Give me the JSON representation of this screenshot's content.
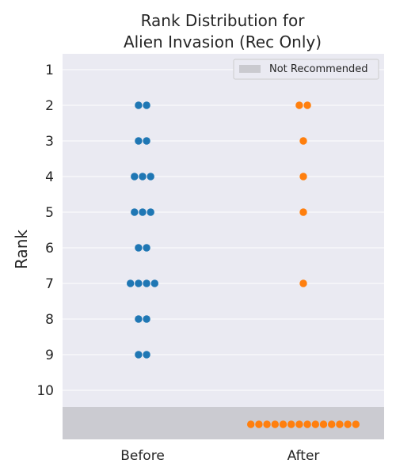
{
  "chart_data": {
    "type": "scatter",
    "subtype": "swarm",
    "title_lines": [
      "Rank Distribution for",
      "Alien Invasion (Rec Only)"
    ],
    "xlabel": "",
    "ylabel": "Rank",
    "categories": [
      "Before",
      "After"
    ],
    "y_ticks": [
      "1",
      "2",
      "3",
      "4",
      "5",
      "6",
      "7",
      "8",
      "9",
      "10"
    ],
    "y_inverted": true,
    "grid": true,
    "legend": {
      "position": "top-right",
      "entries": [
        "Not Recommended"
      ]
    },
    "not_recommended_band": true,
    "series": [
      {
        "category": "Before",
        "color": "#1f77b4",
        "counts": [
          {
            "rank": 2,
            "count": 2
          },
          {
            "rank": 3,
            "count": 2
          },
          {
            "rank": 4,
            "count": 3
          },
          {
            "rank": 5,
            "count": 3
          },
          {
            "rank": 6,
            "count": 2
          },
          {
            "rank": 7,
            "count": 4
          },
          {
            "rank": 8,
            "count": 2
          },
          {
            "rank": 9,
            "count": 2
          }
        ],
        "not_recommended_count": 0
      },
      {
        "category": "After",
        "color": "#ff7f0e",
        "counts": [
          {
            "rank": 2,
            "count": 2
          },
          {
            "rank": 3,
            "count": 1
          },
          {
            "rank": 4,
            "count": 1
          },
          {
            "rank": 5,
            "count": 1
          },
          {
            "rank": 7,
            "count": 1
          }
        ],
        "not_recommended_count": 14
      }
    ],
    "colors": {
      "plot_background": "#eaeaf2",
      "band": "#cbcbd1",
      "legend_swatch": "#cacacf"
    }
  }
}
